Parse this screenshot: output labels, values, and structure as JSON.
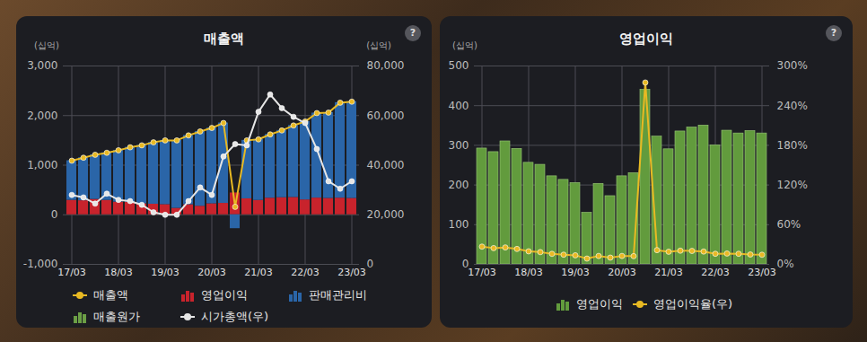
{
  "chart_data": [
    {
      "type": "bar",
      "title": "매출액",
      "help_icon": "?",
      "ylabel": "(십억)",
      "y2label": "(십억)",
      "categories": [
        "17/03",
        null,
        null,
        null,
        "18/03",
        null,
        null,
        null,
        "19/03",
        null,
        null,
        null,
        "20/03",
        null,
        null,
        null,
        "21/03",
        null,
        null,
        null,
        "22/03",
        null,
        null,
        null,
        "23/03"
      ],
      "series": [
        {
          "name": "매출액",
          "type": "line",
          "color": "#e8b923",
          "marker": "circle",
          "values": [
            1090,
            1150,
            1210,
            1250,
            1300,
            1360,
            1400,
            1460,
            1500,
            1500,
            1600,
            1680,
            1750,
            1850,
            160,
            1500,
            1520,
            1620,
            1700,
            1800,
            1880,
            2050,
            2060,
            2260,
            2280
          ]
        },
        {
          "name": "영업이익",
          "type": "bar",
          "color": "#c8232c",
          "values": [
            292,
            283,
            310,
            291,
            256,
            251,
            222,
            213,
            205,
            130,
            203,
            172,
            222,
            230,
            440,
            322,
            290,
            335,
            345,
            350,
            300,
            337,
            330,
            336,
            330
          ]
        },
        {
          "name": "판매관리비",
          "type": "bar",
          "color": "#2a65a8",
          "values": [
            798,
            867,
            900,
            959,
            1044,
            1109,
            1178,
            1247,
            1295,
            1370,
            1397,
            1508,
            1528,
            1620,
            -280,
            1178,
            1230,
            1285,
            1355,
            1450,
            1580,
            1713,
            1730,
            1924,
            1950
          ]
        },
        {
          "name": "매출원가",
          "type": "bar",
          "color": "#6b9e45",
          "values": [
            0,
            0,
            0,
            0,
            0,
            0,
            0,
            0,
            0,
            0,
            0,
            0,
            0,
            0,
            0,
            0,
            0,
            0,
            0,
            0,
            0,
            0,
            0,
            0,
            0
          ]
        },
        {
          "name": "시가총액(우)",
          "type": "line",
          "color": "#e6e6e6",
          "marker": "circle",
          "axis": "y2",
          "values": [
            28000,
            27000,
            24500,
            28500,
            26000,
            25500,
            24000,
            21000,
            20000,
            20000,
            25500,
            31000,
            28000,
            43500,
            48500,
            48000,
            61500,
            68500,
            63000,
            59500,
            57000,
            46500,
            33500,
            30500,
            33500
          ]
        }
      ],
      "ylim": [
        -1000,
        3000
      ],
      "yticks": [
        {
          "value": -1000,
          "label": "-1,000"
        },
        0,
        {
          "value": 1000,
          "label": "1,000"
        },
        {
          "value": 2000,
          "label": "2,000"
        },
        {
          "value": 3000,
          "label": "3,000"
        }
      ],
      "y2lim": [
        0,
        80000
      ],
      "y2ticks": [
        0,
        {
          "value": 20000,
          "label": "20,000"
        },
        {
          "value": 40000,
          "label": "40,000"
        },
        {
          "value": 60000,
          "label": "60,000"
        },
        {
          "value": 80000,
          "label": "80,000"
        }
      ],
      "grid": true,
      "stacked": true,
      "legend": "bottom"
    },
    {
      "type": "bar",
      "title": "영업이익",
      "help_icon": "?",
      "ylabel": "(십억)",
      "categories": [
        "17/03",
        null,
        null,
        null,
        "18/03",
        null,
        null,
        null,
        "19/03",
        null,
        null,
        null,
        "20/03",
        null,
        null,
        null,
        "21/03",
        null,
        null,
        null,
        "22/03",
        null,
        null,
        null,
        "23/03"
      ],
      "series": [
        {
          "name": "영업이익",
          "type": "bar",
          "color": "#629b3d",
          "values": [
            292,
            283,
            310,
            291,
            256,
            251,
            222,
            213,
            205,
            130,
            203,
            172,
            222,
            230,
            440,
            322,
            290,
            335,
            345,
            350,
            300,
            337,
            330,
            336,
            330
          ]
        },
        {
          "name": "영업이익율(우)",
          "type": "line",
          "color": "#e8b923",
          "marker": "circle",
          "axis": "y2",
          "values": [
            26.8,
            24.6,
            25.6,
            23.3,
            19.7,
            18.5,
            15.9,
            14.6,
            13.7,
            8.7,
            12.7,
            10.2,
            12.7,
            12.4,
            275,
            21.5,
            19.1,
            20.7,
            20.3,
            19.4,
            16,
            16.4,
            16,
            14.9,
            14.5
          ]
        }
      ],
      "ylim": [
        0,
        500
      ],
      "yticks": [
        0,
        100,
        200,
        300,
        400,
        500
      ],
      "y2lim": [
        0,
        300
      ],
      "y2ticks": [
        {
          "value": 0,
          "label": "0%"
        },
        {
          "value": 60,
          "label": "60%"
        },
        {
          "value": 120,
          "label": "120%"
        },
        {
          "value": 180,
          "label": "180%"
        },
        {
          "value": 240,
          "label": "240%"
        },
        {
          "value": 300,
          "label": "300%"
        }
      ],
      "grid": true,
      "stacked": false,
      "legend": "bottom"
    }
  ]
}
